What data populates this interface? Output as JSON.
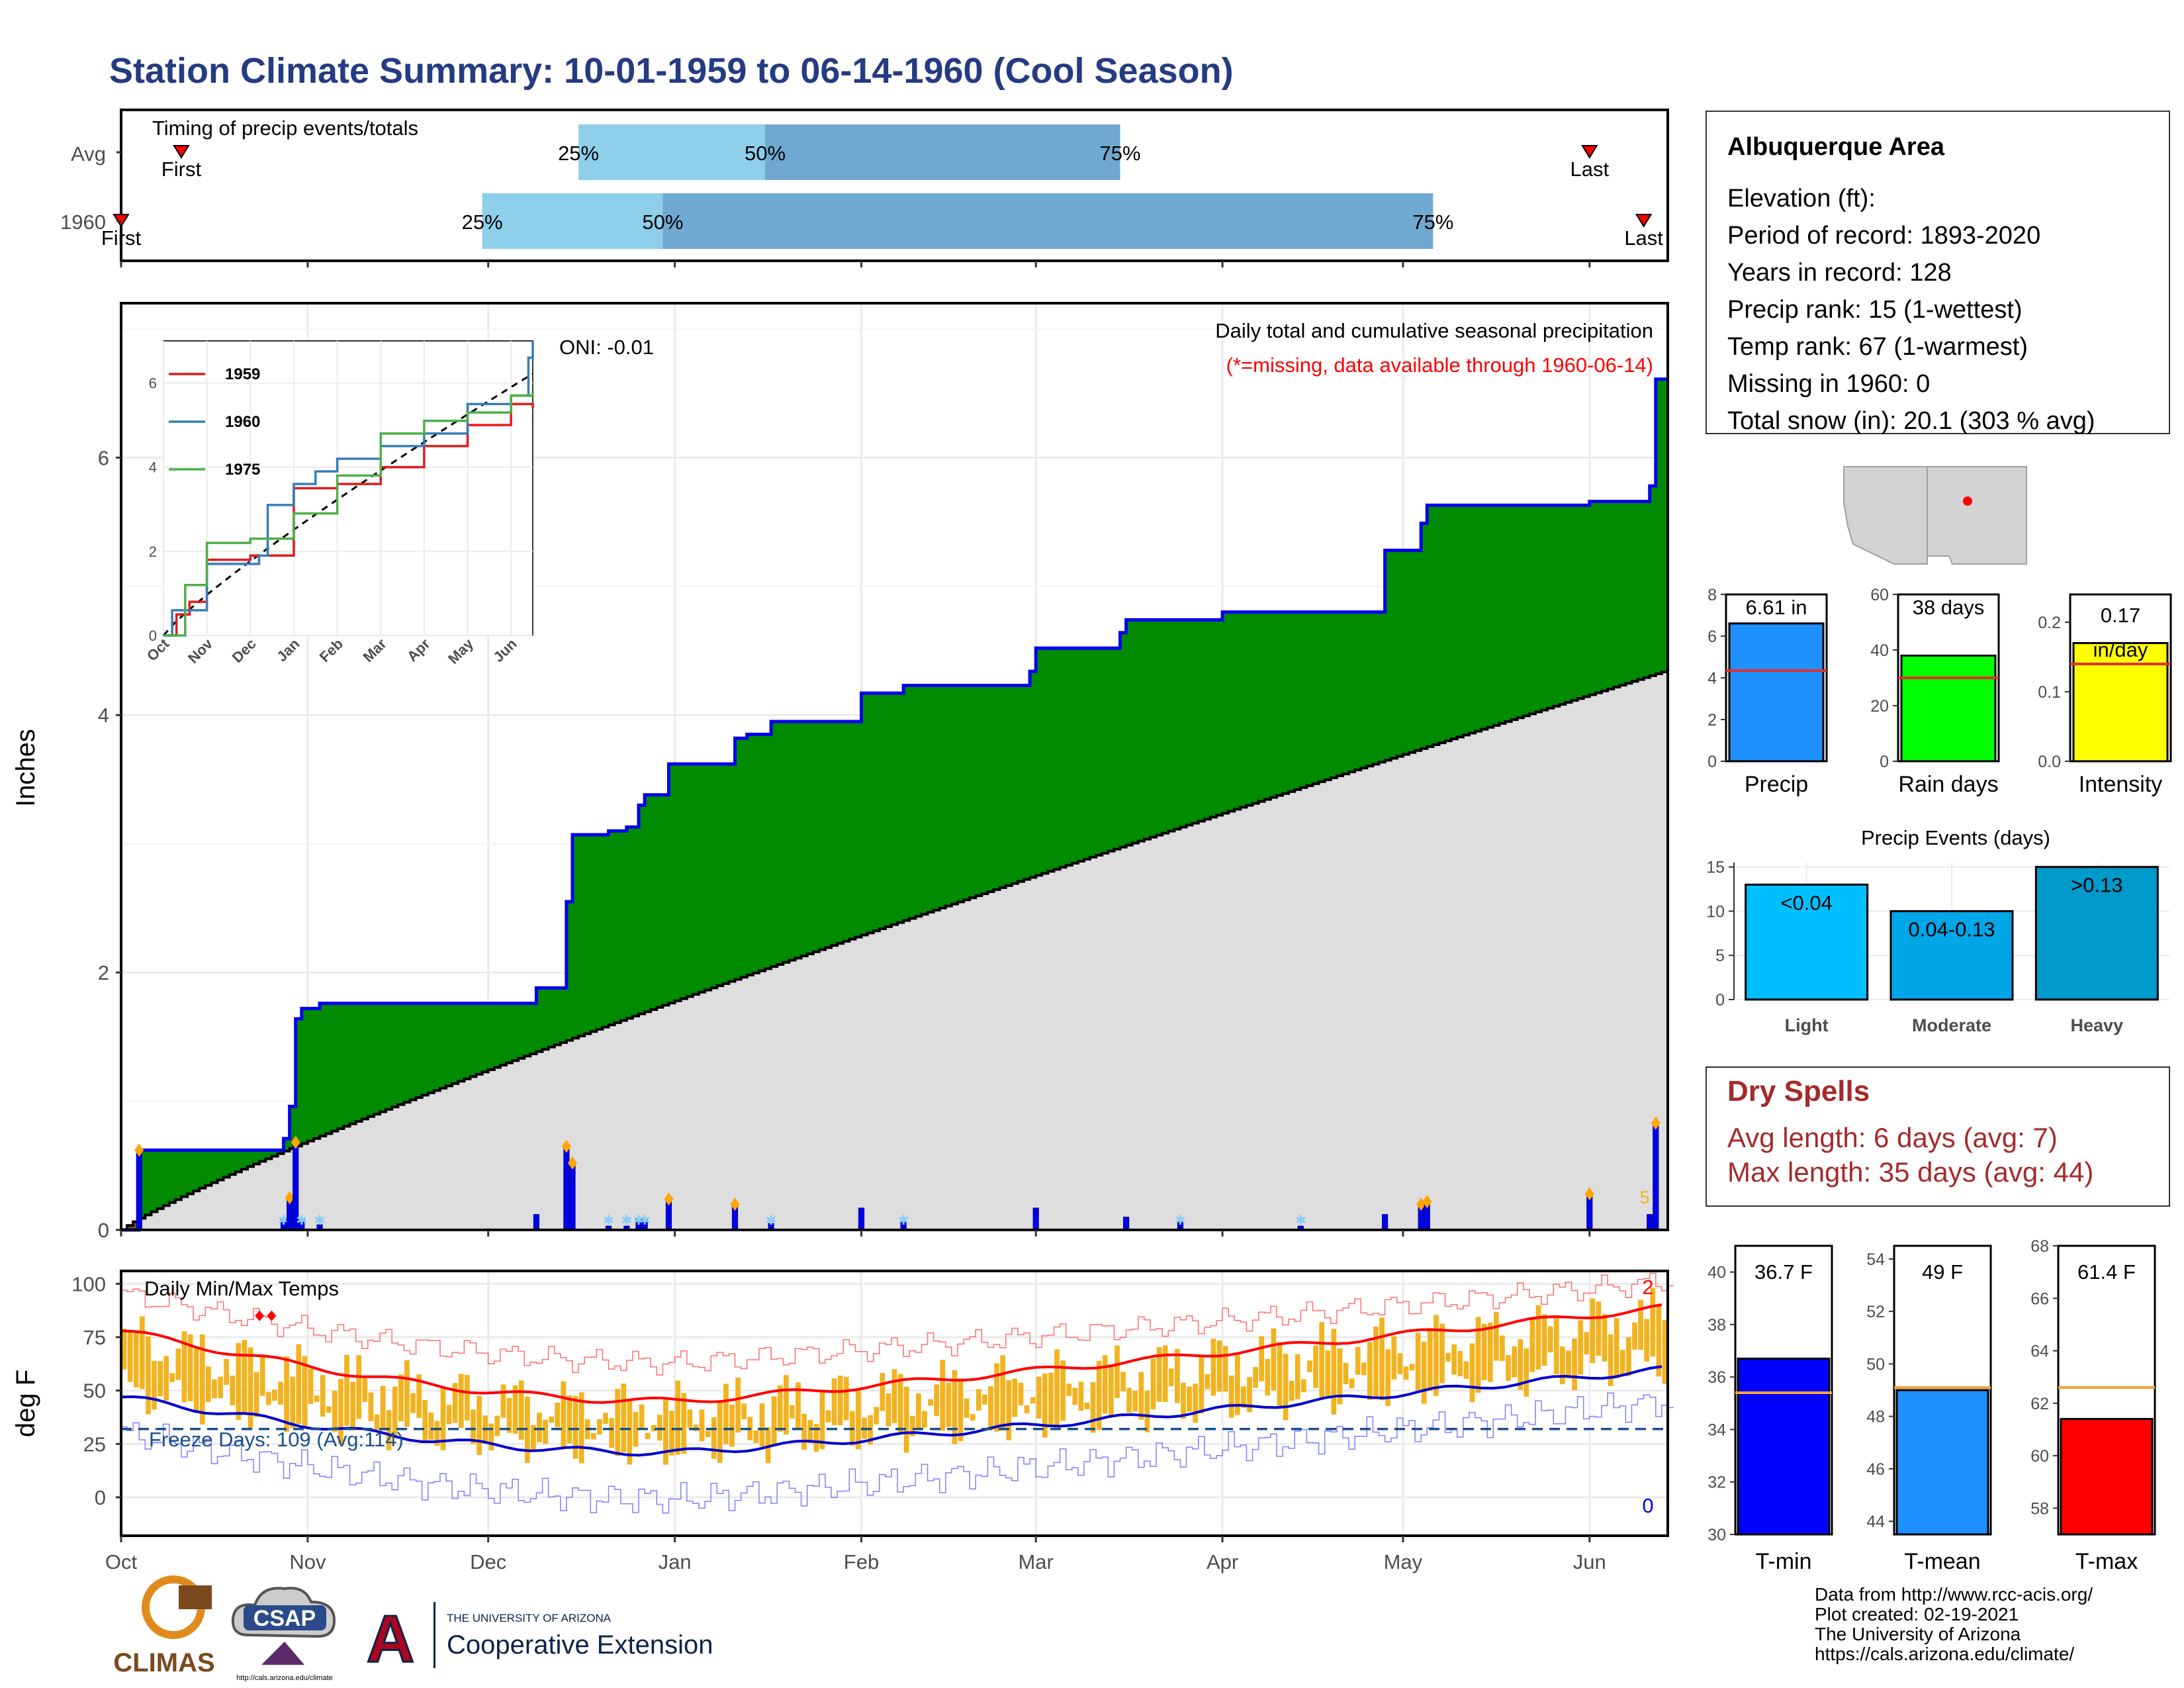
{
  "title": "Station Climate Summary: 10-01-1959 to 06-14-1960 (Cool Season)",
  "colors": {
    "title": "#253b82",
    "green": "#008b00",
    "blue_line": "#0000ee",
    "grey_fill": "#dedede",
    "orange": "#f2b320",
    "red": "#ff0000",
    "dry_red": "#a52a2a",
    "light_blue": "#8ecfea",
    "mid_blue": "#6fa8d0",
    "precip_bar": "#1e90ff",
    "raindays_bar": "#00ff00",
    "intensity_bar": "#ffff00"
  },
  "timing": {
    "title": "Timing of precip events/totals",
    "rows": [
      {
        "label": "Avg",
        "first_label": "First",
        "last_label": "Last",
        "first": "1959-10-11",
        "p25": "1959-12-16",
        "p50": "1960-01-16",
        "p75": "1960-03-15",
        "last": "1960-06-01"
      },
      {
        "label": "1960",
        "first_label": "First",
        "last_label": "Last",
        "first": "1959-10-01",
        "p25": "1959-11-30",
        "p50": "1959-12-30",
        "p75": "1960-05-06",
        "last": "1960-06-10"
      }
    ],
    "pct_labels": [
      "25%",
      "50%",
      "75%"
    ]
  },
  "precip_chart": {
    "ylabel": "Inches",
    "yticks": [
      "0",
      "2",
      "4",
      "6"
    ],
    "ylim": [
      0,
      7.2
    ],
    "oni_label": "ONI: -0.01",
    "note_title": "Daily total and cumulative seasonal precipitation",
    "note_missing": "(*=missing, data available through 1960-06-14)",
    "corner_mark": "5",
    "cumulative_steps": [
      {
        "date": "1959-10-01",
        "value": 0.0
      },
      {
        "date": "1959-10-04",
        "value": 0.62
      },
      {
        "date": "1959-10-28",
        "value": 0.71
      },
      {
        "date": "1959-10-29",
        "value": 0.96
      },
      {
        "date": "1959-10-30",
        "value": 1.64
      },
      {
        "date": "1959-10-31",
        "value": 1.72
      },
      {
        "date": "1959-11-03",
        "value": 1.76
      },
      {
        "date": "1959-12-09",
        "value": 1.88
      },
      {
        "date": "1959-12-14",
        "value": 2.55
      },
      {
        "date": "1959-12-15",
        "value": 3.07
      },
      {
        "date": "1959-12-21",
        "value": 3.1
      },
      {
        "date": "1959-12-24",
        "value": 3.13
      },
      {
        "date": "1959-12-26",
        "value": 3.3
      },
      {
        "date": "1959-12-27",
        "value": 3.38
      },
      {
        "date": "1959-12-31",
        "value": 3.62
      },
      {
        "date": "1960-01-11",
        "value": 3.82
      },
      {
        "date": "1960-01-13",
        "value": 3.85
      },
      {
        "date": "1960-01-17",
        "value": 3.95
      },
      {
        "date": "1960-02-01",
        "value": 4.17
      },
      {
        "date": "1960-02-08",
        "value": 4.23
      },
      {
        "date": "1960-02-29",
        "value": 4.34
      },
      {
        "date": "1960-03-01",
        "value": 4.52
      },
      {
        "date": "1960-03-15",
        "value": 4.64
      },
      {
        "date": "1960-03-16",
        "value": 4.74
      },
      {
        "date": "1960-04-01",
        "value": 4.8
      },
      {
        "date": "1960-04-28",
        "value": 5.28
      },
      {
        "date": "1960-05-04",
        "value": 5.49
      },
      {
        "date": "1960-05-05",
        "value": 5.63
      },
      {
        "date": "1960-06-01",
        "value": 5.66
      },
      {
        "date": "1960-06-11",
        "value": 5.78
      },
      {
        "date": "1960-06-12",
        "value": 6.61
      }
    ],
    "normal_cumulative_end": 4.35,
    "daily_precip": [
      {
        "date": "1959-10-04",
        "value": 0.62
      },
      {
        "date": "1959-10-28",
        "value": 0.09
      },
      {
        "date": "1959-10-29",
        "value": 0.25
      },
      {
        "date": "1959-10-30",
        "value": 0.68
      },
      {
        "date": "1959-10-31",
        "value": 0.08
      },
      {
        "date": "1959-11-03",
        "value": 0.04
      },
      {
        "date": "1959-12-09",
        "value": 0.12
      },
      {
        "date": "1959-12-14",
        "value": 0.65
      },
      {
        "date": "1959-12-15",
        "value": 0.52
      },
      {
        "date": "1959-12-21",
        "value": 0.03
      },
      {
        "date": "1959-12-24",
        "value": 0.03
      },
      {
        "date": "1959-12-26",
        "value": 0.08
      },
      {
        "date": "1959-12-27",
        "value": 0.08
      },
      {
        "date": "1959-12-31",
        "value": 0.24
      },
      {
        "date": "1960-01-11",
        "value": 0.2
      },
      {
        "date": "1960-01-17",
        "value": 0.05
      },
      {
        "date": "1960-02-01",
        "value": 0.17
      },
      {
        "date": "1960-02-08",
        "value": 0.06
      },
      {
        "date": "1960-03-01",
        "value": 0.17
      },
      {
        "date": "1960-03-16",
        "value": 0.1
      },
      {
        "date": "1960-03-25",
        "value": 0.06
      },
      {
        "date": "1960-04-14",
        "value": 0.03
      },
      {
        "date": "1960-04-28",
        "value": 0.12
      },
      {
        "date": "1960-05-04",
        "value": 0.2
      },
      {
        "date": "1960-05-05",
        "value": 0.22
      },
      {
        "date": "1960-06-01",
        "value": 0.28
      },
      {
        "date": "1960-06-11",
        "value": 0.12
      },
      {
        "date": "1960-06-12",
        "value": 0.83
      }
    ]
  },
  "inset_chart": {
    "yticks": [
      "0",
      "2",
      "4",
      "6"
    ],
    "ylim": [
      0,
      7
    ],
    "xticks": [
      "Oct",
      "Nov",
      "Dec",
      "Jan",
      "Feb",
      "Mar",
      "Apr",
      "May",
      "Jun"
    ],
    "series": [
      {
        "name": "1959",
        "color": "#e41a1c",
        "points": [
          [
            0,
            0
          ],
          [
            0.3,
            0.5
          ],
          [
            0.6,
            0.8
          ],
          [
            1.0,
            1.8
          ],
          [
            2.0,
            1.9
          ],
          [
            3.0,
            3.5
          ],
          [
            4.0,
            3.6
          ],
          [
            5.0,
            4.0
          ],
          [
            6.0,
            4.5
          ],
          [
            7.0,
            5.0
          ],
          [
            8.0,
            5.5
          ],
          [
            8.5,
            5.4
          ],
          [
            9.0,
            5.4
          ]
        ]
      },
      {
        "name": "1960",
        "color": "#377eb8",
        "points": [
          [
            0,
            0
          ],
          [
            0.2,
            0.6
          ],
          [
            1.0,
            1.7
          ],
          [
            2.2,
            1.9
          ],
          [
            2.4,
            3.1
          ],
          [
            3.0,
            3.6
          ],
          [
            3.5,
            3.9
          ],
          [
            4.0,
            4.2
          ],
          [
            5.0,
            4.5
          ],
          [
            6.0,
            4.8
          ],
          [
            7.0,
            5.5
          ],
          [
            8.0,
            5.7
          ],
          [
            8.4,
            6.6
          ],
          [
            9.0,
            7.0
          ]
        ]
      },
      {
        "name": "1975",
        "color": "#4daf4a",
        "points": [
          [
            0,
            0
          ],
          [
            0.5,
            1.2
          ],
          [
            1.0,
            2.2
          ],
          [
            2.0,
            2.3
          ],
          [
            3.0,
            2.9
          ],
          [
            4.0,
            3.8
          ],
          [
            5.0,
            4.8
          ],
          [
            6.0,
            5.1
          ],
          [
            7.0,
            5.3
          ],
          [
            8.0,
            5.7
          ],
          [
            9.0,
            5.8
          ]
        ]
      }
    ]
  },
  "temp_chart": {
    "title": "Daily Min/Max Temps",
    "ylabel": "deg F",
    "yticks": [
      "0",
      "25",
      "50",
      "75",
      "100"
    ],
    "ylim": [
      -18,
      106
    ],
    "freeze_label": "Freeze Days: 109 (Avg:114)",
    "freeze_line": 32,
    "record_high_count": "2",
    "record_low_count": "0",
    "avg_max_start": 78,
    "avg_max_min": 45,
    "avg_max_end": 89,
    "avg_min_start": 47,
    "avg_min_min": 21,
    "avg_min_end": 60
  },
  "x_axis_months": [
    "Oct",
    "Nov",
    "Dec",
    "Jan",
    "Feb",
    "Mar",
    "Apr",
    "May",
    "Jun"
  ],
  "station": {
    "name": "Albuquerque Area",
    "lines": [
      "Elevation (ft):",
      "Period of record: 1893-2020",
      "Years in record: 128",
      "Precip rank: 15 (1-wettest)",
      "Temp rank: 67 (1-warmest)",
      "Missing in 1960: 0",
      "Total snow (in): 20.1 (303 % avg)"
    ]
  },
  "summary_bars": [
    {
      "label": "Precip",
      "value_label": "6.61 in",
      "value": 6.61,
      "avg": 4.35,
      "ylim": [
        0,
        8
      ],
      "yticks": [
        "0",
        "2",
        "4",
        "6",
        "8"
      ],
      "color": "#1e90ff"
    },
    {
      "label": "Rain days",
      "value_label": "38 days",
      "value": 38,
      "avg": 30,
      "ylim": [
        0,
        60
      ],
      "yticks": [
        "0",
        "20",
        "40",
        "60"
      ],
      "color": "#00ff00"
    },
    {
      "label": "Intensity",
      "value_label": "0.17 in/day",
      "value": 0.17,
      "avg": 0.14,
      "ylim": [
        0,
        0.24
      ],
      "yticks": [
        "0.0",
        "0.1",
        "0.2"
      ],
      "color": "#ffff00"
    }
  ],
  "precip_events": {
    "title": "Precip Events (days)",
    "yticks": [
      "0",
      "5",
      "10",
      "15"
    ],
    "ylim": [
      0,
      15.5
    ],
    "bars": [
      {
        "label": "Light",
        "value_label": "<0.04",
        "value": 13,
        "color": "#00bfff"
      },
      {
        "label": "Moderate",
        "value_label": "0.04-0.13",
        "value": 10,
        "color": "#00a6e6"
      },
      {
        "label": "Heavy",
        "value_label": ">0.13",
        "value": 15,
        "color": "#0099cc"
      }
    ]
  },
  "dry_spells": {
    "title": "Dry Spells",
    "avg_line": "Avg length: 6 days (avg: 7)",
    "max_line": "Max length: 35 days (avg: 44)"
  },
  "temp_bars": [
    {
      "label": "T-min",
      "value_label": "36.7 F",
      "value": 36.7,
      "avg": 35.4,
      "ylim": [
        30,
        41
      ],
      "yticks": [
        "30",
        "32",
        "34",
        "36",
        "38",
        "40"
      ],
      "color": "#0000ff"
    },
    {
      "label": "T-mean",
      "value_label": "49 F",
      "value": 49,
      "avg": 49.1,
      "ylim": [
        43.5,
        54.5
      ],
      "yticks": [
        "44",
        "46",
        "48",
        "50",
        "52",
        "54"
      ],
      "color": "#1e90ff"
    },
    {
      "label": "T-max",
      "value_label": "61.4 F",
      "value": 61.4,
      "avg": 62.6,
      "ylim": [
        57,
        68
      ],
      "yticks": [
        "58",
        "60",
        "62",
        "64",
        "66",
        "68"
      ],
      "color": "#ff0000"
    }
  ],
  "footer": {
    "lines": [
      "Data from http://www.rcc-acis.org/",
      "Plot created: 02-19-2021",
      "The University of Arizona",
      "https://cals.arizona.edu/climate/"
    ]
  },
  "logos": {
    "climas": "CLIMAS",
    "csap": "CSAP",
    "csap_url": "http://cals.arizona.edu/climate",
    "ua_small": "THE UNIVERSITY OF ARIZONA",
    "ua_big": "Cooperative Extension"
  }
}
